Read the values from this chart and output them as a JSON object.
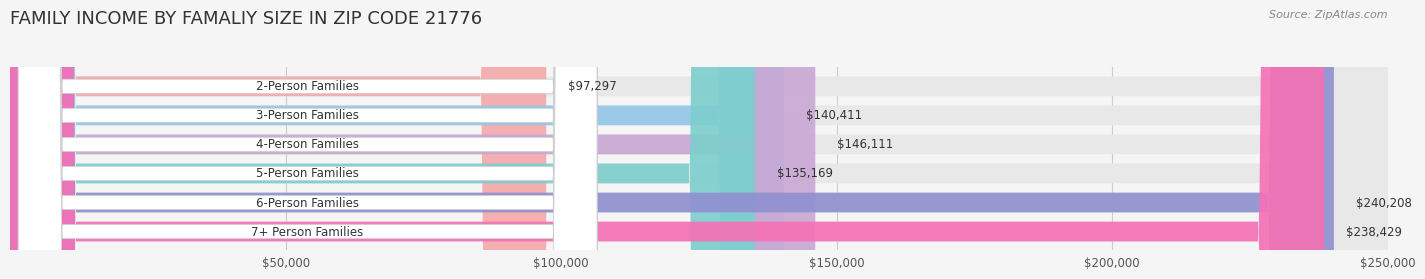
{
  "title": "FAMILY INCOME BY FAMALIY SIZE IN ZIP CODE 21776",
  "source": "Source: ZipAtlas.com",
  "categories": [
    "2-Person Families",
    "3-Person Families",
    "4-Person Families",
    "5-Person Families",
    "6-Person Families",
    "7+ Person Families"
  ],
  "values": [
    97297,
    140411,
    146111,
    135169,
    240208,
    238429
  ],
  "bar_colors": [
    "#f4a9aa",
    "#95c8e8",
    "#c9a8d4",
    "#7ecece",
    "#9090d0",
    "#f472b6"
  ],
  "value_labels": [
    "$97,297",
    "$140,411",
    "$146,111",
    "$135,169",
    "$240,208",
    "$238,429"
  ],
  "xlim": [
    0,
    250000
  ],
  "xticks": [
    0,
    50000,
    100000,
    150000,
    200000,
    250000
  ],
  "xticklabels": [
    "",
    "$50,000",
    "$100,000",
    "$150,000",
    "$200,000",
    "$250,000"
  ],
  "bg_color": "#f5f5f5",
  "bar_bg_color": "#e8e8e8",
  "title_fontsize": 13,
  "label_fontsize": 8.5,
  "value_fontsize": 8.5
}
